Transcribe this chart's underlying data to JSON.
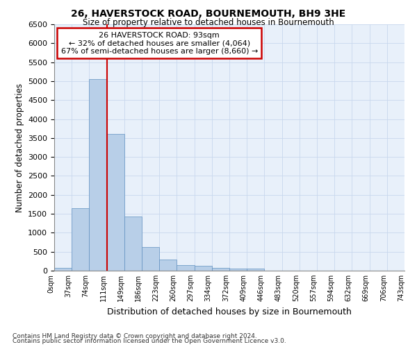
{
  "title": "26, HAVERSTOCK ROAD, BOURNEMOUTH, BH9 3HE",
  "subtitle": "Size of property relative to detached houses in Bournemouth",
  "xlabel": "Distribution of detached houses by size in Bournemouth",
  "ylabel": "Number of detached properties",
  "footnote1": "Contains HM Land Registry data © Crown copyright and database right 2024.",
  "footnote2": "Contains public sector information licensed under the Open Government Licence v3.0.",
  "bar_values": [
    70,
    1650,
    5060,
    3600,
    1420,
    620,
    285,
    140,
    130,
    80,
    60,
    50,
    0,
    0,
    0,
    0,
    0,
    0,
    0,
    0
  ],
  "x_labels": [
    "0sqm",
    "37sqm",
    "74sqm",
    "111sqm",
    "149sqm",
    "186sqm",
    "223sqm",
    "260sqm",
    "297sqm",
    "334sqm",
    "372sqm",
    "409sqm",
    "446sqm",
    "483sqm",
    "520sqm",
    "557sqm",
    "594sqm",
    "632sqm",
    "669sqm",
    "706sqm",
    "743sqm"
  ],
  "bar_color": "#b8cfe8",
  "bar_edge_color": "#6090c0",
  "vline_x": 3,
  "vline_color": "#cc0000",
  "annotation_text": "26 HAVERSTOCK ROAD: 93sqm\n← 32% of detached houses are smaller (4,064)\n67% of semi-detached houses are larger (8,660) →",
  "annotation_box_color": "#cc0000",
  "ylim": [
    0,
    6500
  ],
  "ytick_step": 500,
  "grid_color": "#c8d8ee",
  "background_color": "#e8f0fa"
}
